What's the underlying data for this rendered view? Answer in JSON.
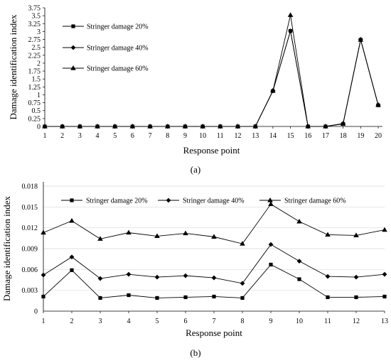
{
  "chart_data": [
    {
      "type": "line",
      "caption": "(a)",
      "xlabel": "Response point",
      "ylabel": "Damage identification index",
      "categories": [
        "1",
        "2",
        "3",
        "4",
        "5",
        "6",
        "7",
        "8",
        "9",
        "10",
        "11",
        "12",
        "13",
        "14",
        "15",
        "16",
        "17",
        "18",
        "19",
        "20"
      ],
      "ylim": [
        0,
        3.75
      ],
      "yticks": [
        "0",
        "0.25",
        "0.5",
        "0.75",
        "1",
        "1.25",
        "1.5",
        "1.75",
        "2",
        "2.25",
        "2.5",
        "2.75",
        "3",
        "3.25",
        "3.5",
        "3.75"
      ],
      "legend_position": "top-left",
      "grid": false,
      "series": [
        {
          "name": "Stringer damage 20%",
          "marker": "square",
          "values": [
            0,
            0,
            0,
            0,
            0,
            0,
            0,
            0,
            0,
            0,
            0,
            0,
            0,
            1.12,
            3.02,
            0,
            0,
            0.08,
            2.74,
            0.67
          ]
        },
        {
          "name": "Stringer damage 40%",
          "marker": "diamond",
          "values": [
            0,
            0,
            0,
            0,
            0,
            0,
            0,
            0,
            0,
            0,
            0,
            0,
            0,
            1.13,
            3.02,
            0,
            0,
            0.09,
            2.75,
            0.68
          ]
        },
        {
          "name": "Stringer damage 60%",
          "marker": "triangle",
          "values": [
            0,
            0,
            0,
            0,
            0,
            0,
            0,
            0,
            0,
            0,
            0,
            0,
            0,
            1.13,
            3.52,
            0,
            0,
            0.09,
            2.74,
            0.68
          ]
        }
      ]
    },
    {
      "type": "line",
      "caption": "(b)",
      "xlabel": "Response point",
      "ylabel": "Damage identification index",
      "categories": [
        "1",
        "2",
        "3",
        "4",
        "5",
        "6",
        "7",
        "8",
        "9",
        "10",
        "11",
        "12",
        "13"
      ],
      "ylim": [
        0,
        0.018
      ],
      "yticks": [
        "0",
        "0.003",
        "0.006",
        "0.009",
        "0.012",
        "0.015",
        "0.018"
      ],
      "legend_position": "top",
      "grid": true,
      "series": [
        {
          "name": "Stringer damage 20%",
          "marker": "square",
          "values": [
            0.0021,
            0.0059,
            0.0019,
            0.0023,
            0.0019,
            0.002,
            0.0021,
            0.0019,
            0.0067,
            0.0046,
            0.002,
            0.002,
            0.0021
          ]
        },
        {
          "name": "Stringer damage 40%",
          "marker": "diamond",
          "values": [
            0.0052,
            0.0078,
            0.0047,
            0.0053,
            0.0049,
            0.0051,
            0.0048,
            0.004,
            0.0096,
            0.0072,
            0.005,
            0.0049,
            0.0053
          ]
        },
        {
          "name": "Stringer damage 60%",
          "marker": "triangle",
          "values": [
            0.0113,
            0.013,
            0.0104,
            0.0113,
            0.0108,
            0.0112,
            0.0107,
            0.0097,
            0.0154,
            0.0129,
            0.011,
            0.0109,
            0.0117
          ]
        }
      ]
    }
  ]
}
